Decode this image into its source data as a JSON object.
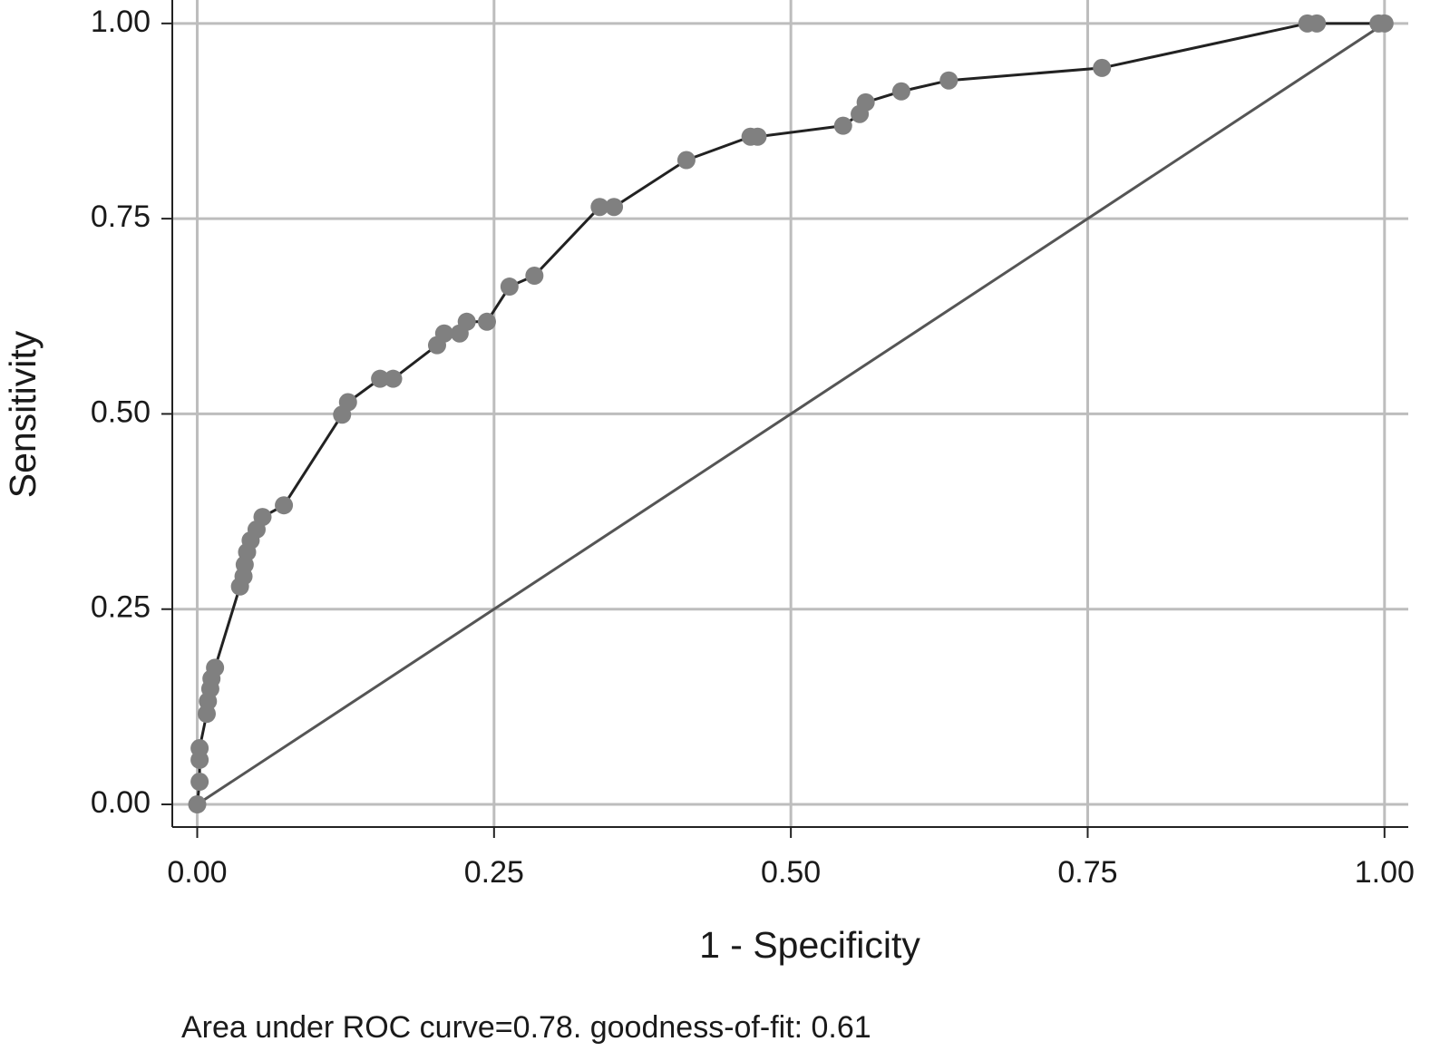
{
  "chart_data": {
    "type": "line",
    "xlabel": "1 - Specificity",
    "ylabel": "Sensitivity",
    "note": "Area under ROC curve=0.78.  goodness-of-fit: 0.61",
    "xlim": [
      -0.021,
      1.02
    ],
    "ylim": [
      -0.029,
      1.03
    ],
    "xticks": [
      {
        "value": 0,
        "label": "0.00"
      },
      {
        "value": 0.25,
        "label": "0.25"
      },
      {
        "value": 0.5,
        "label": "0.50"
      },
      {
        "value": 0.75,
        "label": "0.75"
      },
      {
        "value": 1,
        "label": "1.00"
      }
    ],
    "yticks": [
      {
        "value": 0,
        "label": "0.00"
      },
      {
        "value": 0.25,
        "label": "0.25"
      },
      {
        "value": 0.5,
        "label": "0.50"
      },
      {
        "value": 0.75,
        "label": "0.75"
      },
      {
        "value": 1,
        "label": "1.00"
      }
    ],
    "grid": true,
    "x": [
      0,
      0.002,
      0.002,
      0.002,
      0.008,
      0.009,
      0.011,
      0.012,
      0.015,
      0.036,
      0.039,
      0.04,
      0.042,
      0.045,
      0.05,
      0.055,
      0.073,
      0.122,
      0.127,
      0.154,
      0.165,
      0.202,
      0.208,
      0.221,
      0.227,
      0.244,
      0.263,
      0.284,
      0.339,
      0.351,
      0.412,
      0.466,
      0.472,
      0.544,
      0.558,
      0.563,
      0.593,
      0.633,
      0.762,
      0.935,
      0.943,
      0.995,
      1
    ],
    "series": [
      {
        "color": "#222222",
        "marker_color": "#808080",
        "values": [
          0,
          0.029,
          0.057,
          0.072,
          0.116,
          0.132,
          0.148,
          0.161,
          0.175,
          0.279,
          0.292,
          0.307,
          0.323,
          0.338,
          0.352,
          0.368,
          0.383,
          0.499,
          0.515,
          0.545,
          0.545,
          0.588,
          0.603,
          0.603,
          0.618,
          0.618,
          0.663,
          0.677,
          0.765,
          0.765,
          0.825,
          0.855,
          0.855,
          0.869,
          0.884,
          0.899,
          0.913,
          0.927,
          0.943,
          1,
          1,
          1,
          1
        ]
      }
    ],
    "diagonal": {
      "x": [
        0,
        1
      ],
      "values": [
        0,
        1
      ],
      "color": "#555555"
    }
  }
}
